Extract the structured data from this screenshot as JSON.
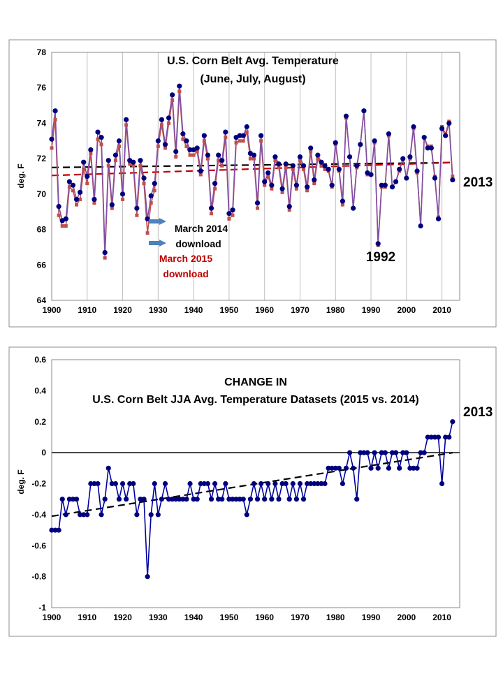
{
  "chart_data": [
    {
      "type": "line",
      "title": "U.S. Corn Belt Avg. Temperature",
      "subtitle": "(June, July, August)",
      "xlabel": "",
      "ylabel": "deg. F",
      "xlim": [
        1900,
        2015
      ],
      "ylim": [
        64,
        78
      ],
      "xticks": [
        1900,
        1910,
        1920,
        1930,
        1940,
        1950,
        1960,
        1970,
        1980,
        1990,
        2000,
        2010
      ],
      "yticks": [
        64,
        66,
        68,
        70,
        72,
        74,
        76,
        78
      ],
      "grid": "vertical",
      "x_start": 1900,
      "series": [
        {
          "name": "March 2014 download",
          "color": "#00007f",
          "line_color": "#7f50a8",
          "marker": "circle",
          "values": [
            73.1,
            74.7,
            69.3,
            68.5,
            68.6,
            70.7,
            70.5,
            69.7,
            70.1,
            71.8,
            71.0,
            72.5,
            69.7,
            73.5,
            73.2,
            66.7,
            71.9,
            69.4,
            72.2,
            73.0,
            70.0,
            74.2,
            71.9,
            71.8,
            69.2,
            71.9,
            70.9,
            68.6,
            69.9,
            70.6,
            73.0,
            74.2,
            72.8,
            74.3,
            75.6,
            72.4,
            76.1,
            73.4,
            73.0,
            72.5,
            72.5,
            72.6,
            71.3,
            73.3,
            72.2,
            69.2,
            70.6,
            72.2,
            71.9,
            73.5,
            68.9,
            69.1,
            73.2,
            73.3,
            73.3,
            73.8,
            72.3,
            72.2,
            69.5,
            73.3,
            70.7,
            71.2,
            70.5,
            72.1,
            71.7,
            70.3,
            71.7,
            69.3,
            71.6,
            70.5,
            72.1,
            71.6,
            70.4,
            72.6,
            70.8,
            72.2,
            71.8,
            71.6,
            71.4,
            70.5,
            72.9,
            71.4,
            69.6,
            74.4,
            72.1,
            69.2,
            71.6,
            72.8,
            74.7,
            71.2,
            71.1,
            73.0,
            67.2,
            70.5,
            70.5,
            73.4,
            70.4,
            70.7,
            71.4,
            72.0,
            70.9,
            72.1,
            73.8,
            71.3,
            68.2,
            73.2,
            72.6,
            72.6,
            70.9,
            68.6,
            73.7,
            73.3,
            74.0,
            70.8
          ]
        },
        {
          "name": "March 2015 download",
          "color": "#c0504d",
          "line_color": "#c0504d",
          "marker": "square",
          "values": [
            72.6,
            74.2,
            68.8,
            68.2,
            68.2,
            70.4,
            70.2,
            69.4,
            69.7,
            71.4,
            70.6,
            72.3,
            69.5,
            73.1,
            72.8,
            66.4,
            71.6,
            69.2,
            71.9,
            72.7,
            69.7,
            73.9,
            71.7,
            71.6,
            68.8,
            71.6,
            70.6,
            67.8,
            69.5,
            70.2,
            72.7,
            73.9,
            72.6,
            74.0,
            75.3,
            72.1,
            75.8,
            73.1,
            72.7,
            72.2,
            72.2,
            72.4,
            71.1,
            73.0,
            72.0,
            68.9,
            70.3,
            71.9,
            71.6,
            73.2,
            68.6,
            68.8,
            72.9,
            73.0,
            73.0,
            73.5,
            72.0,
            72.0,
            69.2,
            73.0,
            70.5,
            71.0,
            70.3,
            71.9,
            71.5,
            70.1,
            71.5,
            69.1,
            71.4,
            70.3,
            71.9,
            71.4,
            70.2,
            72.4,
            70.6,
            72.0,
            71.6,
            71.4,
            71.3,
            70.4,
            72.8,
            71.3,
            69.4,
            74.3,
            72.1,
            69.2,
            71.5,
            72.8,
            74.7,
            71.1,
            71.1,
            72.9,
            67.1,
            70.4,
            70.4,
            73.3,
            70.4,
            70.7,
            71.3,
            72.0,
            70.9,
            72.0,
            73.7,
            71.2,
            68.2,
            73.2,
            72.7,
            72.7,
            71.0,
            68.7,
            73.8,
            73.4,
            74.1,
            71.0
          ]
        }
      ],
      "trendlines": [
        {
          "series": "March 2014 download",
          "color": "#000000",
          "x": [
            1900,
            2013
          ],
          "y": [
            71.5,
            71.78
          ]
        },
        {
          "series": "March 2015 download",
          "color": "#c00000",
          "x": [
            1900,
            2013
          ],
          "y": [
            71.05,
            71.78
          ]
        }
      ],
      "annotations": {
        "label_2014": {
          "line1": "March 2014",
          "line2": "download",
          "color": "#000000"
        },
        "label_2015": {
          "line1": "March 2015",
          "line2": "download",
          "color": "#c00000"
        },
        "label_1992": "1992",
        "label_2013": "2013"
      },
      "arrow_color": "#4f81bd"
    },
    {
      "type": "line",
      "title": "CHANGE IN",
      "subtitle": "U.S. Corn Belt JJA Avg. Temperature Datasets (2015 vs. 2014)",
      "xlabel": "",
      "ylabel": "deg. F",
      "xlim": [
        1900,
        2015
      ],
      "ylim": [
        -1,
        0.6
      ],
      "xticks": [
        1900,
        1910,
        1920,
        1930,
        1940,
        1950,
        1960,
        1970,
        1980,
        1990,
        2000,
        2010
      ],
      "yticks": [
        -1,
        -0.8,
        -0.6,
        -0.4,
        -0.2,
        0,
        0.2,
        0.4,
        0.6
      ],
      "ytick_labels": [
        "-1",
        "-0.8",
        "-0.6",
        "-0.4",
        "-0.2",
        "0",
        "0.2",
        "0.4",
        "0.6"
      ],
      "grid": "none",
      "zero_line": true,
      "x_start": 1900,
      "series": [
        {
          "color": "#00007f",
          "line_color": "#0000a0",
          "marker": "circle",
          "values": [
            -0.5,
            -0.5,
            -0.5,
            -0.3,
            -0.4,
            -0.3,
            -0.3,
            -0.3,
            -0.4,
            -0.4,
            -0.4,
            -0.2,
            -0.2,
            -0.2,
            -0.4,
            -0.3,
            -0.1,
            -0.2,
            -0.2,
            -0.3,
            -0.2,
            -0.3,
            -0.2,
            -0.2,
            -0.4,
            -0.3,
            -0.3,
            -0.8,
            -0.4,
            -0.2,
            -0.4,
            -0.3,
            -0.2,
            -0.3,
            -0.3,
            -0.3,
            -0.3,
            -0.3,
            -0.3,
            -0.2,
            -0.3,
            -0.3,
            -0.2,
            -0.2,
            -0.2,
            -0.3,
            -0.2,
            -0.3,
            -0.3,
            -0.2,
            -0.3,
            -0.3,
            -0.3,
            -0.3,
            -0.3,
            -0.4,
            -0.3,
            -0.2,
            -0.3,
            -0.2,
            -0.3,
            -0.2,
            -0.3,
            -0.2,
            -0.3,
            -0.2,
            -0.2,
            -0.3,
            -0.2,
            -0.3,
            -0.2,
            -0.3,
            -0.2,
            -0.2,
            -0.2,
            -0.2,
            -0.2,
            -0.2,
            -0.1,
            -0.1,
            -0.1,
            -0.1,
            -0.2,
            -0.1,
            0.0,
            -0.1,
            -0.3,
            0.0,
            0.0,
            0.0,
            -0.1,
            0.0,
            -0.1,
            0.0,
            0.0,
            -0.1,
            0.0,
            0.0,
            -0.1,
            0.0,
            0.0,
            -0.1,
            -0.1,
            -0.1,
            0.0,
            0.0,
            0.1,
            0.1,
            0.1,
            0.1,
            -0.2,
            0.1,
            0.1,
            0.2
          ]
        }
      ],
      "trendlines": [
        {
          "color": "#000000",
          "x": [
            1900,
            2013
          ],
          "y": [
            -0.41,
            0.0
          ]
        }
      ],
      "annotations": {
        "label_2013": "2013"
      }
    }
  ]
}
